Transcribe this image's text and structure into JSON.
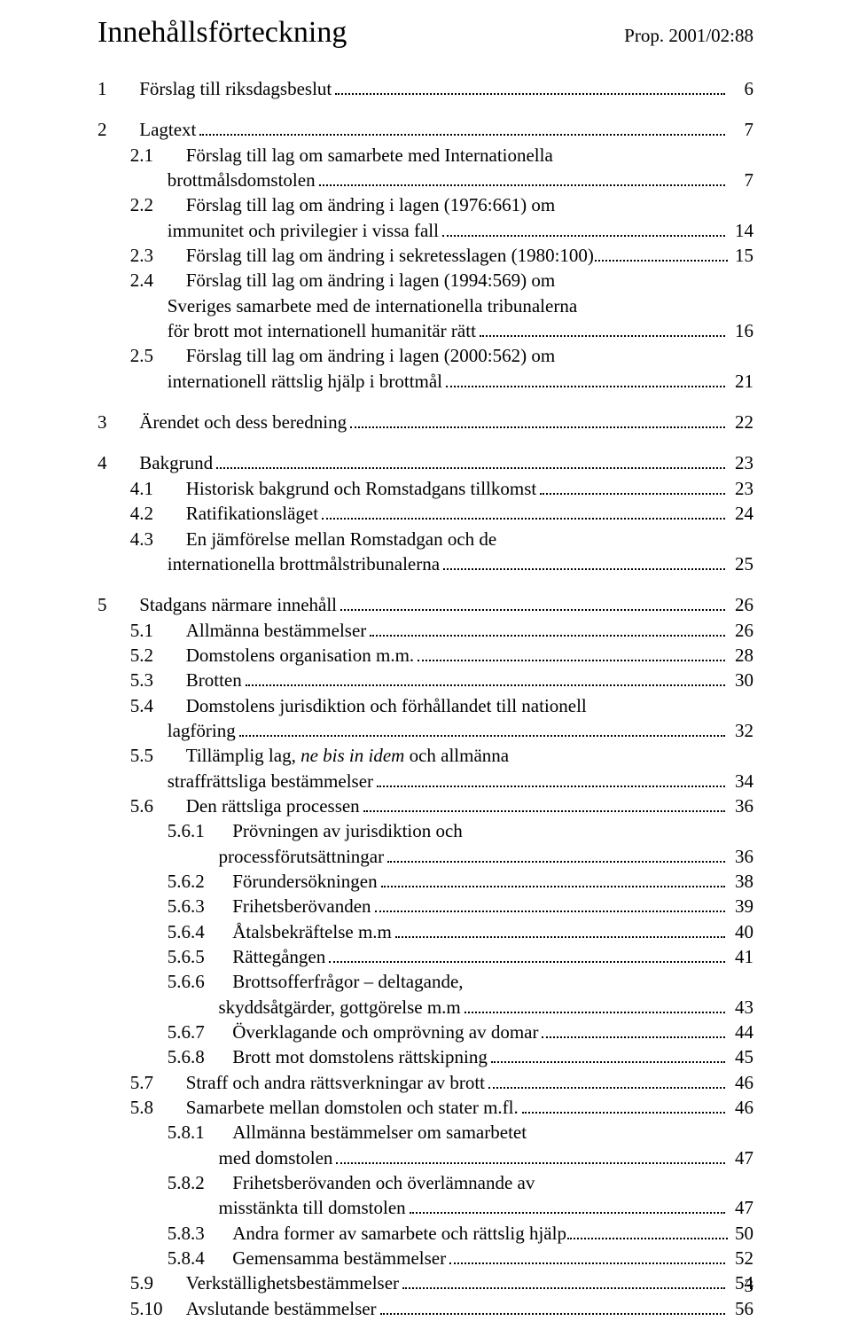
{
  "header": {
    "title": "Innehållsförteckning",
    "prop": "Prop. 2001/02:88"
  },
  "page_number": "3",
  "indents": {
    "l1": "",
    "l2": "       ",
    "l2cont": "               ",
    "l3": "               ",
    "l3cont": "                          "
  },
  "toc": [
    {
      "type": "l1",
      "num": "1",
      "sep": "       ",
      "text": "Förslag till riksdagsbeslut",
      "page": "6"
    },
    {
      "type": "gap-lg"
    },
    {
      "type": "l1",
      "num": "2",
      "sep": "       ",
      "text": "Lagtext",
      "page": "7"
    },
    {
      "type": "l2",
      "num": "2.1",
      "sep": "       ",
      "text": "Förslag till lag om samarbete med Internationella"
    },
    {
      "type": "cont2",
      "text": "brottmålsdomstolen",
      "page": "7"
    },
    {
      "type": "l2",
      "num": "2.2",
      "sep": "       ",
      "text": "Förslag till lag om ändring i lagen (1976:661) om"
    },
    {
      "type": "cont2",
      "text": "immunitet och privilegier i vissa fall",
      "page": "14"
    },
    {
      "type": "l2",
      "num": "2.3",
      "sep": "       ",
      "text": "Förslag till lag om ändring i sekretesslagen (1980:100)",
      "page": "15",
      "tight": true
    },
    {
      "type": "l2",
      "num": "2.4",
      "sep": "       ",
      "text": "Förslag till lag om ändring i lagen (1994:569) om"
    },
    {
      "type": "cont2",
      "text": "Sveriges samarbete med de internationella tribunalerna"
    },
    {
      "type": "cont2",
      "text": "för brott mot internationell humanitär rätt",
      "page": "16"
    },
    {
      "type": "l2",
      "num": "2.5",
      "sep": "       ",
      "text": "Förslag till lag om ändring i lagen (2000:562) om"
    },
    {
      "type": "cont2",
      "text": "internationell rättslig hjälp i brottmål",
      "page": "21"
    },
    {
      "type": "gap-lg"
    },
    {
      "type": "l1",
      "num": "3",
      "sep": "       ",
      "text": "Ärendet och dess beredning",
      "page": "22"
    },
    {
      "type": "gap-lg"
    },
    {
      "type": "l1",
      "num": "4",
      "sep": "       ",
      "text": "Bakgrund",
      "page": "23"
    },
    {
      "type": "l2",
      "num": "4.1",
      "sep": "       ",
      "text": "Historisk bakgrund och Romstadgans tillkomst",
      "page": "23"
    },
    {
      "type": "l2",
      "num": "4.2",
      "sep": "       ",
      "text": "Ratifikationsläget",
      "page": "24"
    },
    {
      "type": "l2",
      "num": "4.3",
      "sep": "       ",
      "text": "En jämförelse mellan Romstadgan och de"
    },
    {
      "type": "cont2x",
      "text": " internationella brottmålstribunalerna",
      "page": "25"
    },
    {
      "type": "gap-lg"
    },
    {
      "type": "l1",
      "num": "5",
      "sep": "       ",
      "text": "Stadgans närmare innehåll",
      "page": "26"
    },
    {
      "type": "l2",
      "num": "5.1",
      "sep": "       ",
      "text": "Allmänna bestämmelser",
      "page": "26"
    },
    {
      "type": "l2",
      "num": "5.2",
      "sep": "       ",
      "text": "Domstolens organisation m.m.",
      "page": "28"
    },
    {
      "type": "l2",
      "num": "5.3",
      "sep": "       ",
      "text": "Brotten",
      "page": "30"
    },
    {
      "type": "l2",
      "num": "5.4",
      "sep": "       ",
      "text": "Domstolens jurisdiktion och förhållandet till nationell"
    },
    {
      "type": "cont2",
      "text": "lagföring",
      "page": "32"
    },
    {
      "type": "l2-mixed",
      "num": "5.5",
      "sep": "       ",
      "parts": [
        {
          "t": "Tillämplig lag, "
        },
        {
          "t": "ne bis in idem",
          "italic": true
        },
        {
          "t": " och allmänna"
        }
      ]
    },
    {
      "type": "cont2x",
      "text": " straffrättsliga bestämmelser",
      "page": "34"
    },
    {
      "type": "l2",
      "num": "5.6",
      "sep": "       ",
      "text": "Den rättsliga processen",
      "page": "36"
    },
    {
      "type": "l3",
      "num": "5.6.1",
      "sep": "      ",
      "text": "Prövningen av jurisdiktion och"
    },
    {
      "type": "cont3",
      "text": "processförutsättningar",
      "page": "36"
    },
    {
      "type": "l3",
      "num": "5.6.2",
      "sep": "      ",
      "text": "Förundersökningen",
      "page": "38"
    },
    {
      "type": "l3",
      "num": "5.6.3",
      "sep": "      ",
      "text": "Frihetsberövanden",
      "page": "39"
    },
    {
      "type": "l3",
      "num": "5.6.4",
      "sep": "      ",
      "text": "Åtalsbekräftelse m.m",
      "page": "40"
    },
    {
      "type": "l3",
      "num": "5.6.5",
      "sep": "      ",
      "text": "Rättegången",
      "page": "41"
    },
    {
      "type": "l3",
      "num": "5.6.6",
      "sep": "      ",
      "text": "Brottsofferfrågor – deltagande,"
    },
    {
      "type": "cont3",
      "text": "skyddsåtgärder, gottgörelse m.m",
      "page": "43"
    },
    {
      "type": "l3",
      "num": "5.6.7",
      "sep": "      ",
      "text": "Överklagande och omprövning av domar",
      "page": "44"
    },
    {
      "type": "l3",
      "num": "5.6.8",
      "sep": "      ",
      "text": "Brott mot domstolens rättskipning",
      "page": "45"
    },
    {
      "type": "l2",
      "num": "5.7",
      "sep": "       ",
      "text": "Straff och andra rättsverkningar av brott",
      "page": "46"
    },
    {
      "type": "l2",
      "num": "5.8",
      "sep": "       ",
      "text": "Samarbete mellan domstolen och stater m.fl.",
      "page": "46"
    },
    {
      "type": "l3",
      "num": "5.8.1",
      "sep": "      ",
      "text": "Allmänna bestämmelser om samarbetet"
    },
    {
      "type": "cont3",
      "text": "med domstolen",
      "page": "47"
    },
    {
      "type": "l3",
      "num": "5.8.2",
      "sep": "      ",
      "text": "Frihetsberövanden och överlämnande av"
    },
    {
      "type": "cont3",
      "text": "misstänkta till domstolen",
      "page": "47"
    },
    {
      "type": "l3",
      "num": "5.8.3",
      "sep": "      ",
      "text": "Andra former av samarbete och rättslig hjälp",
      "page": "50",
      "tight": true
    },
    {
      "type": "l3",
      "num": "5.8.4",
      "sep": "      ",
      "text": "Gemensamma bestämmelser",
      "page": "52"
    },
    {
      "type": "l2",
      "num": "5.9",
      "sep": "       ",
      "text": "Verkställighetsbestämmelser",
      "page": "54"
    },
    {
      "type": "l2",
      "num": "5.10",
      "sep": "     ",
      "text": "Avslutande bestämmelser",
      "page": "56"
    }
  ]
}
